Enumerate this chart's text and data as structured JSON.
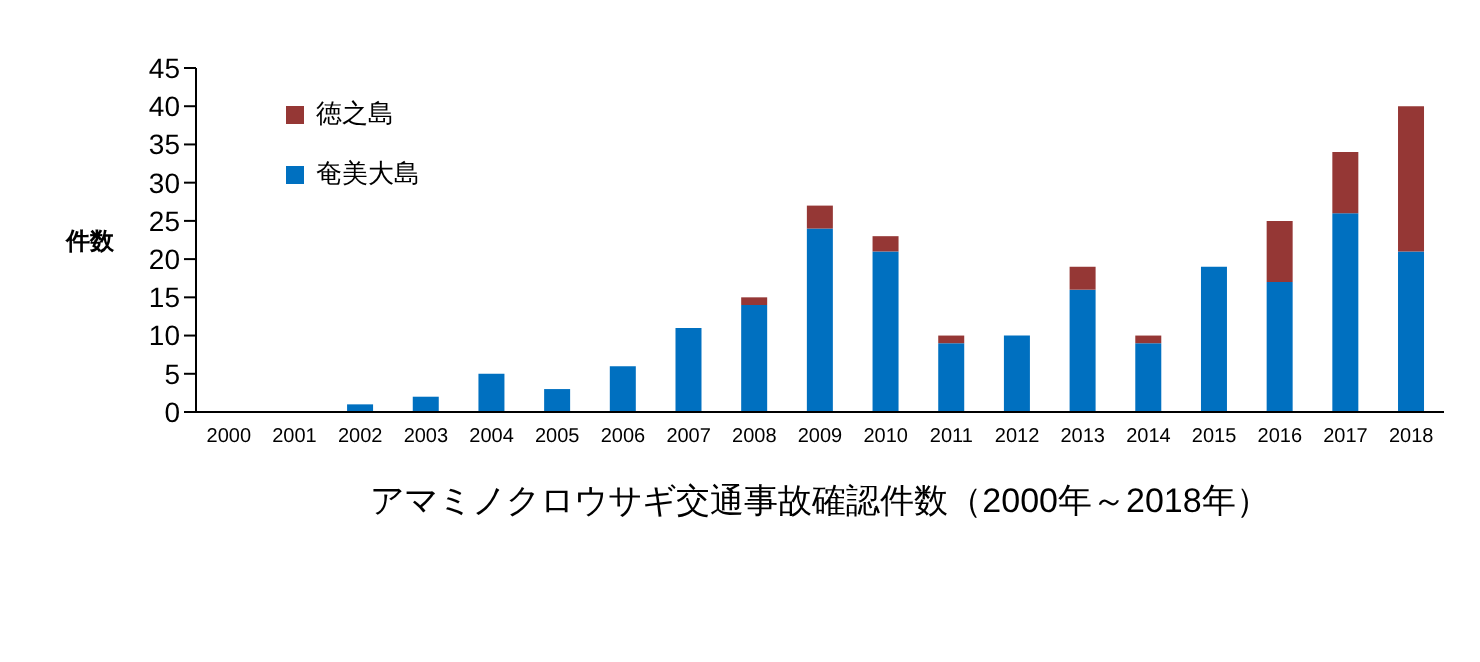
{
  "chart_data": {
    "type": "bar",
    "stacked": true,
    "xlabel": "アマミノクロウサギ交通事故確認件数（2000年～2018年）",
    "ylabel": "件数",
    "categories": [
      "2000",
      "2001",
      "2002",
      "2003",
      "2004",
      "2005",
      "2006",
      "2007",
      "2008",
      "2009",
      "2010",
      "2011",
      "2012",
      "2013",
      "2014",
      "2015",
      "2016",
      "2017",
      "2018"
    ],
    "series": [
      {
        "name": "奄美大島",
        "color": "#0070c0",
        "values": [
          0,
          0,
          1,
          2,
          5,
          3,
          6,
          11,
          14,
          24,
          21,
          9,
          10,
          16,
          9,
          19,
          17,
          26,
          21
        ]
      },
      {
        "name": "徳之島",
        "color": "#953735",
        "values": [
          0,
          0,
          0,
          0,
          0,
          0,
          0,
          0,
          1,
          3,
          2,
          1,
          0,
          3,
          1,
          0,
          8,
          8,
          19
        ]
      }
    ],
    "ylim": [
      0,
      45
    ],
    "yticks": [
      0,
      5,
      10,
      15,
      20,
      25,
      30,
      35,
      40,
      45
    ],
    "grid": false,
    "legend": "top left"
  }
}
